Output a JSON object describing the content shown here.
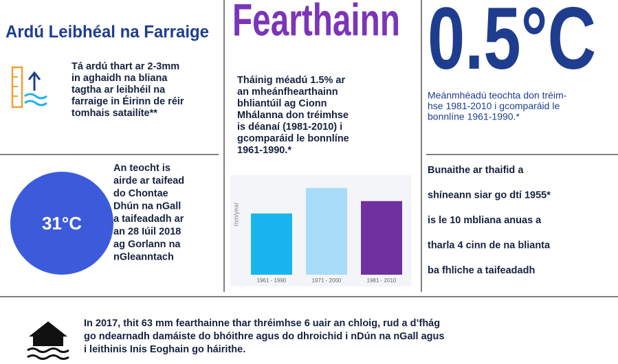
{
  "sea_level": {
    "heading": "Ardú Leibhéal na Farraige",
    "lines": [
      "Tá ardú thart ar 2-3mm",
      "in aghaidh na bliana",
      "tagtha ar leibhéil na",
      "farraige in Éirinn de réir",
      "tomhais satailíte**"
    ]
  },
  "rainfall": {
    "heading": "Fearthainn",
    "lines": [
      "Tháinig méadú 1.5% ar",
      "an mheánfhearthainn",
      "bhliantúil ag Cionn",
      "Mhálanna don tréimhse",
      "is déanaí (1981-2010) i",
      "gcomparáid le bonnlíne",
      "1961-1990.*"
    ]
  },
  "chart_data": {
    "type": "bar",
    "y_label": "mm/year",
    "categories": [
      "1961 - 1990",
      "1971 - 2000",
      "1981 - 2010"
    ],
    "values": [
      84,
      119,
      101
    ],
    "colors": [
      "#1ab4ee",
      "#a9dcf8",
      "#7030a0"
    ],
    "ylim": [
      0,
      130
    ]
  },
  "temperature": {
    "heading": "0.5°C",
    "lines": [
      "Meánmhéadú teochta don tréim-",
      "hse 1981-2010 i gcomparáid le",
      "bonnlíne 1961-1990.*"
    ]
  },
  "record": {
    "badge": "31°C",
    "lines": [
      "An teocht is",
      "airde ar taifead",
      "do Chontae",
      "Dhún na nGall",
      "a taifeadadh ar",
      "an 28 Iúil 2018",
      "ag Gorlann na",
      "nGleanntach"
    ]
  },
  "wettest": {
    "lines": [
      "Bunaithe ar thaifid a",
      "shíneann siar go dtí 1955*",
      "is le 10 mbliana anuas a",
      "tharla 4 cinn de na blianta",
      "ba fhliche a taifeadadh"
    ]
  },
  "flood": {
    "lines": [
      "In 2017, thit 63 mm fearthainne thar thréimhse 6 uair an chloig, rud a d’fhág",
      "go ndearnadh damáiste do bhóithre agus do dhroichid i nDún na nGall agus",
      "i leithinis Inis Eoghain go háirithe."
    ]
  }
}
